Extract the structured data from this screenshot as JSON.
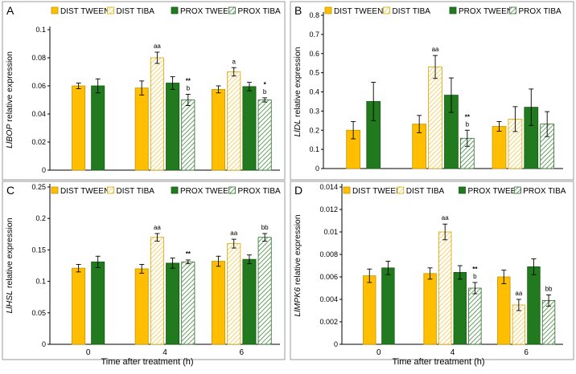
{
  "colors": {
    "dist": "#FFBF00",
    "prox": "#227A1E",
    "dist_hatch": "#FFE9A8",
    "prox_hatch": "#5E9E5A",
    "axis": "#000000",
    "frame": "#9a9a9a"
  },
  "xlabel": "Time after treatment (h)",
  "chart_data": [
    {
      "type": "bar",
      "letter": "A",
      "gene": "LlBOP",
      "ylabel_suffix": " relative expression",
      "ylim": [
        0,
        0.1
      ],
      "yticks": [
        "0",
        "0.02",
        "0.04",
        "0.06",
        "0.08",
        "0.1"
      ],
      "categories": [
        "0",
        "4",
        "6"
      ],
      "series": [
        {
          "name": "DIST TWEEN",
          "style": "dist-solid",
          "values": [
            0.06,
            0.0585,
            0.0575
          ],
          "errors": [
            0.002,
            0.005,
            0.0025
          ],
          "labels": [
            "",
            "",
            ""
          ]
        },
        {
          "name": "DIST TIBA",
          "style": "dist-hatch",
          "values": [
            null,
            0.08,
            0.07
          ],
          "errors": [
            null,
            0.004,
            0.003
          ],
          "labels": [
            "",
            "aa",
            "a"
          ]
        },
        {
          "name": "PROX TWEEN",
          "style": "prox-solid",
          "values": [
            0.06,
            0.062,
            0.0595
          ],
          "errors": [
            0.005,
            0.0045,
            0.003
          ],
          "labels": [
            "",
            "",
            ""
          ]
        },
        {
          "name": "PROX TIBA",
          "style": "prox-hatch",
          "values": [
            null,
            0.05,
            0.05
          ],
          "errors": [
            null,
            0.004,
            0.0015
          ],
          "labels": [
            "",
            "**\nb",
            "*\nb"
          ]
        }
      ]
    },
    {
      "type": "bar",
      "letter": "B",
      "gene": "LlDL",
      "ylabel_suffix": " relative expression",
      "ylim": [
        0,
        0.8
      ],
      "yticks": [
        "0",
        "0.1",
        "0.2",
        "0.3",
        "0.4",
        "0.5",
        "0.6",
        "0.7",
        "0.8"
      ],
      "categories": [
        "0",
        "4",
        "6"
      ],
      "series": [
        {
          "name": "DIST TWEEN",
          "style": "dist-solid",
          "values": [
            0.2,
            0.232,
            0.22
          ],
          "errors": [
            0.045,
            0.045,
            0.025
          ],
          "labels": [
            "",
            "",
            ""
          ]
        },
        {
          "name": "DIST TIBA",
          "style": "dist-hatch",
          "values": [
            null,
            0.53,
            0.258
          ],
          "errors": [
            null,
            0.06,
            0.065
          ],
          "labels": [
            "",
            "aa",
            ""
          ]
        },
        {
          "name": "PROX TWEEN",
          "style": "prox-solid",
          "values": [
            0.35,
            0.383,
            0.32
          ],
          "errors": [
            0.1,
            0.09,
            0.095
          ],
          "labels": [
            "",
            "",
            ""
          ]
        },
        {
          "name": "PROX TIBA",
          "style": "prox-hatch",
          "values": [
            null,
            0.158,
            0.232
          ],
          "errors": [
            null,
            0.042,
            0.065
          ],
          "labels": [
            "",
            "**\nb",
            ""
          ]
        }
      ]
    },
    {
      "type": "bar",
      "letter": "C",
      "gene": "LlHSL",
      "ylabel_suffix": " relative expression",
      "ylim": [
        0,
        0.25
      ],
      "yticks": [
        "0",
        "0.05",
        "0.1",
        "0.15",
        "0.2",
        "0.25"
      ],
      "categories": [
        "0",
        "4",
        "6"
      ],
      "series": [
        {
          "name": "DIST TWEEN",
          "style": "dist-solid",
          "values": [
            0.121,
            0.12,
            0.132
          ],
          "errors": [
            0.006,
            0.007,
            0.008
          ],
          "labels": [
            "",
            "",
            ""
          ]
        },
        {
          "name": "DIST TIBA",
          "style": "dist-hatch",
          "values": [
            null,
            0.17,
            0.16
          ],
          "errors": [
            null,
            0.006,
            0.007
          ],
          "labels": [
            "",
            "aa",
            "aa"
          ]
        },
        {
          "name": "PROX TWEEN",
          "style": "prox-solid",
          "values": [
            0.131,
            0.129,
            0.135
          ],
          "errors": [
            0.009,
            0.008,
            0.007
          ],
          "labels": [
            "",
            "",
            ""
          ]
        },
        {
          "name": "PROX TIBA",
          "style": "prox-hatch",
          "values": [
            null,
            0.131,
            0.17
          ],
          "errors": [
            null,
            0.003,
            0.006
          ],
          "labels": [
            "",
            "**",
            "bb"
          ]
        }
      ]
    },
    {
      "type": "bar",
      "letter": "D",
      "gene": "LlMPK6",
      "ylabel_suffix": " relative expression",
      "ylim": [
        0,
        0.014
      ],
      "yticks": [
        "0",
        "0.002",
        "0.004",
        "0.006",
        "0.008",
        "0.01",
        "0.012",
        "0.014"
      ],
      "categories": [
        "0",
        "4",
        "6"
      ],
      "series": [
        {
          "name": "DIST TWEEN",
          "style": "dist-solid",
          "values": [
            0.0061,
            0.0063,
            0.006
          ],
          "errors": [
            0.0006,
            0.0005,
            0.0006
          ],
          "labels": [
            "",
            "",
            ""
          ]
        },
        {
          "name": "DIST TIBA",
          "style": "dist-hatch",
          "values": [
            null,
            0.01,
            0.0035
          ],
          "errors": [
            null,
            0.0007,
            0.0005
          ],
          "labels": [
            "",
            "aa",
            "aa"
          ]
        },
        {
          "name": "PROX TWEEN",
          "style": "prox-solid",
          "values": [
            0.0068,
            0.0064,
            0.0069
          ],
          "errors": [
            0.0006,
            0.0006,
            0.0007
          ],
          "labels": [
            "",
            "",
            ""
          ]
        },
        {
          "name": "PROX TIBA",
          "style": "prox-hatch",
          "values": [
            null,
            0.005,
            0.0039
          ],
          "errors": [
            null,
            0.0005,
            0.0005
          ],
          "labels": [
            "",
            "**\nb",
            "bb"
          ]
        }
      ]
    }
  ]
}
